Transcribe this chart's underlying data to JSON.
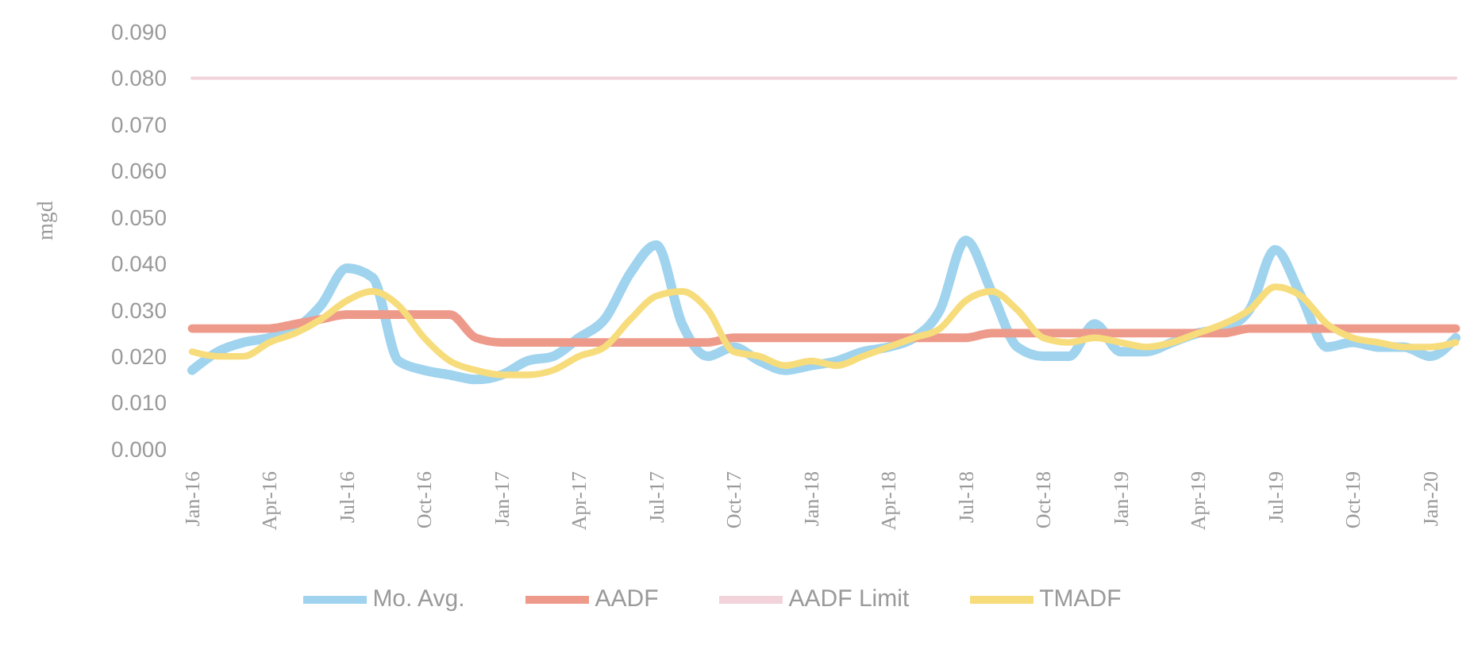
{
  "chart_data": {
    "type": "line",
    "ylabel": "mgd",
    "categories": [
      "Jan-16",
      null,
      null,
      "Apr-16",
      null,
      null,
      "Jul-16",
      null,
      null,
      "Oct-16",
      null,
      null,
      "Jan-17",
      null,
      null,
      "Apr-17",
      null,
      null,
      "Jul-17",
      null,
      null,
      "Oct-17",
      null,
      null,
      "Jan-18",
      null,
      null,
      "Apr-18",
      null,
      null,
      "Jul-18",
      null,
      null,
      "Oct-18",
      null,
      null,
      "Jan-19",
      null,
      null,
      "Apr-19",
      null,
      null,
      "Jul-19",
      null,
      null,
      "Oct-19",
      null,
      null,
      "Jan-20",
      null
    ],
    "series": [
      {
        "name": "Mo. Avg.",
        "color": "#9fd3ee",
        "values": [
          0.017,
          0.021,
          0.023,
          0.024,
          0.026,
          0.031,
          0.039,
          0.037,
          0.019,
          0.017,
          0.016,
          0.015,
          0.016,
          0.019,
          0.02,
          0.024,
          0.028,
          0.038,
          0.044,
          0.027,
          0.02,
          0.022,
          0.019,
          0.017,
          0.018,
          0.019,
          0.021,
          0.022,
          0.024,
          0.03,
          0.045,
          0.034,
          0.022,
          0.02,
          0.02,
          0.027,
          0.021,
          0.021,
          0.023,
          0.025,
          0.026,
          0.03,
          0.043,
          0.033,
          0.022,
          0.023,
          0.022,
          0.022,
          0.02,
          0.024
        ]
      },
      {
        "name": "AADF",
        "color": "#ee9a8a",
        "values": [
          0.026,
          0.026,
          0.026,
          0.026,
          0.027,
          0.028,
          0.029,
          0.029,
          0.029,
          0.029,
          0.029,
          0.024,
          0.023,
          0.023,
          0.023,
          0.023,
          0.023,
          0.023,
          0.023,
          0.023,
          0.023,
          0.024,
          0.024,
          0.024,
          0.024,
          0.024,
          0.024,
          0.024,
          0.024,
          0.024,
          0.024,
          0.025,
          0.025,
          0.025,
          0.025,
          0.025,
          0.025,
          0.025,
          0.025,
          0.025,
          0.025,
          0.026,
          0.026,
          0.026,
          0.026,
          0.026,
          0.026,
          0.026,
          0.026,
          0.026
        ]
      },
      {
        "name": "AADF Limit",
        "color": "#f2d3da",
        "values": [
          0.08,
          0.08,
          0.08,
          0.08,
          0.08,
          0.08,
          0.08,
          0.08,
          0.08,
          0.08,
          0.08,
          0.08,
          0.08,
          0.08,
          0.08,
          0.08,
          0.08,
          0.08,
          0.08,
          0.08,
          0.08,
          0.08,
          0.08,
          0.08,
          0.08,
          0.08,
          0.08,
          0.08,
          0.08,
          0.08,
          0.08,
          0.08,
          0.08,
          0.08,
          0.08,
          0.08,
          0.08,
          0.08,
          0.08,
          0.08,
          0.08,
          0.08,
          0.08,
          0.08,
          0.08,
          0.08,
          0.08,
          0.08,
          0.08,
          0.08
        ]
      },
      {
        "name": "TMADF",
        "color": "#f7dc7c",
        "values": [
          0.021,
          0.02,
          0.02,
          0.023,
          0.025,
          0.028,
          0.032,
          0.034,
          0.031,
          0.024,
          0.019,
          0.017,
          0.016,
          0.016,
          0.017,
          0.02,
          0.022,
          0.028,
          0.033,
          0.034,
          0.03,
          0.021,
          0.02,
          0.018,
          0.019,
          0.018,
          0.02,
          0.022,
          0.024,
          0.026,
          0.032,
          0.034,
          0.03,
          0.024,
          0.023,
          0.024,
          0.023,
          0.022,
          0.023,
          0.025,
          0.027,
          0.03,
          0.035,
          0.033,
          0.027,
          0.024,
          0.023,
          0.022,
          0.022,
          0.023
        ]
      }
    ],
    "ylim": [
      0,
      0.09
    ],
    "yticks": [
      {
        "value": 0,
        "label": "0.000"
      },
      {
        "value": 0.01,
        "label": "0.010"
      },
      {
        "value": 0.02,
        "label": "0.020"
      },
      {
        "value": 0.03,
        "label": "0.030"
      },
      {
        "value": 0.04,
        "label": "0.040"
      },
      {
        "value": 0.05,
        "label": "0.050"
      },
      {
        "value": 0.06,
        "label": "0.060"
      },
      {
        "value": 0.07,
        "label": "0.070"
      },
      {
        "value": 0.08,
        "label": "0.080"
      },
      {
        "value": 0.09,
        "label": "0.090"
      }
    ],
    "grid": false,
    "legend": "bottom",
    "marker": "none",
    "line_style": "solid"
  }
}
